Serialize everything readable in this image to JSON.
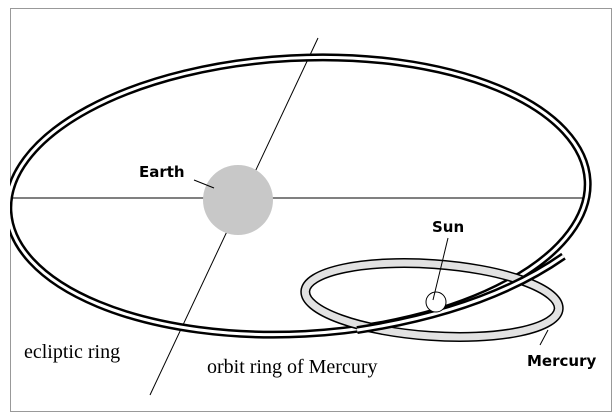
{
  "labels": {
    "earth": "Earth",
    "sun": "Sun",
    "ecliptic": "ecliptic ring",
    "orbit": "orbit ring of Mercury",
    "mercury": "Mercury"
  }
}
